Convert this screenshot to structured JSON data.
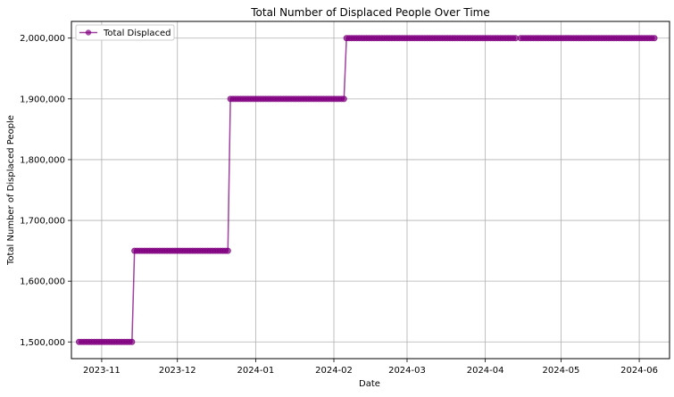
{
  "chart_data": {
    "type": "line",
    "title": "Total Number of Displaced People Over Time",
    "xlabel": "Date",
    "ylabel": "Total Number of Displaced People",
    "grid": true,
    "legend_position": "top-left",
    "x_ticks": [
      "2023-11",
      "2023-12",
      "2024-01",
      "2024-02",
      "2024-03",
      "2024-04",
      "2024-05",
      "2024-06"
    ],
    "y_ticks": [
      "1,500,000",
      "1,600,000",
      "1,700,000",
      "1,800,000",
      "1,900,000",
      "2,000,000"
    ],
    "ylim": [
      1500000,
      2000000
    ],
    "xlim": [
      "2023-10-20",
      "2024-06-13"
    ],
    "series": [
      {
        "name": "Total Displaced",
        "color": "#800080",
        "marker": "circle",
        "segments": [
          {
            "start": "2023-10-23",
            "end": "2023-11-13",
            "value": 1500000
          },
          {
            "start": "2023-11-14",
            "end": "2023-12-21",
            "value": 1650000
          },
          {
            "start": "2023-12-22",
            "end": "2024-02-05",
            "value": 1900000
          },
          {
            "start": "2024-02-06",
            "end": "2024-04-13",
            "value": 2000000
          },
          {
            "start": "2024-04-15",
            "end": "2024-06-07",
            "value": 2000000
          }
        ]
      }
    ]
  }
}
